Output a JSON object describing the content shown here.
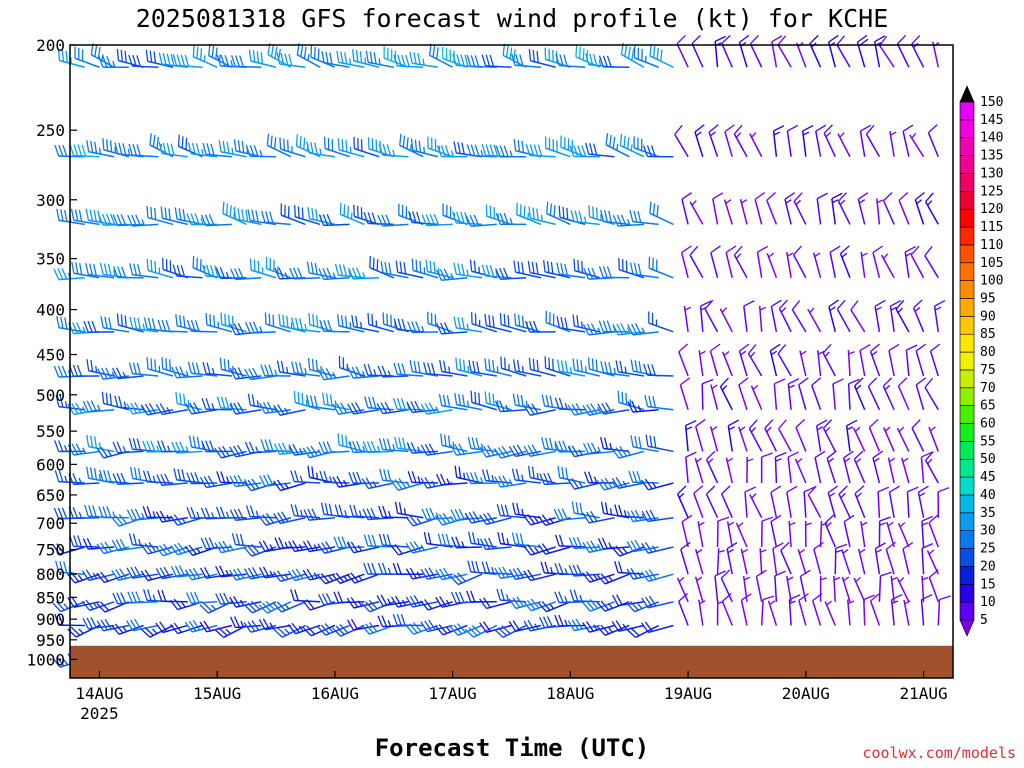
{
  "header": {
    "title": "2025081318 GFS forecast wind profile (kt) for KCHE",
    "xlabel": "Forecast Time (UTC)",
    "credit": "coolwx.com/models"
  },
  "chart_data": {
    "type": "wind-barb-profile",
    "title": "2025081318 GFS forecast wind profile (kt) for KCHE",
    "xlabel": "Forecast Time (UTC)",
    "ylabel": "",
    "y_scale": "log-pressure (hPa), inverted",
    "ylim": [
      1050,
      200
    ],
    "y_ticks": [
      200,
      250,
      300,
      350,
      400,
      450,
      500,
      550,
      600,
      650,
      700,
      750,
      800,
      850,
      900,
      950,
      1000
    ],
    "x_ticks": [
      {
        "hour": 6,
        "label": "14AUG",
        "sublabel": "2025"
      },
      {
        "hour": 30,
        "label": "15AUG",
        "sublabel": ""
      },
      {
        "hour": 54,
        "label": "16AUG",
        "sublabel": ""
      },
      {
        "hour": 78,
        "label": "17AUG",
        "sublabel": ""
      },
      {
        "hour": 102,
        "label": "18AUG",
        "sublabel": ""
      },
      {
        "hour": 126,
        "label": "19AUG",
        "sublabel": ""
      },
      {
        "hour": 150,
        "label": "20AUG",
        "sublabel": ""
      },
      {
        "hour": 174,
        "label": "21AUG",
        "sublabel": ""
      }
    ],
    "xlim": [
      0,
      180
    ],
    "ground_pressure_hpa": 965,
    "ground_color": "#a0522d",
    "barb_levels_hpa": [
      212,
      268,
      320,
      368,
      424,
      476,
      520,
      580,
      630,
      690,
      745,
      800,
      860,
      915,
      1000
    ],
    "colorbar": {
      "levels": [
        5,
        10,
        15,
        20,
        25,
        30,
        35,
        40,
        45,
        50,
        55,
        60,
        65,
        70,
        75,
        80,
        85,
        90,
        95,
        100,
        105,
        110,
        115,
        120,
        125,
        130,
        135,
        140,
        145,
        150
      ],
      "colors": [
        "#7b00f0",
        "#5a00f5",
        "#2800e8",
        "#0a1ee0",
        "#0a4ce8",
        "#0a78f0",
        "#0a9cf0",
        "#05b8e8",
        "#00dcc8",
        "#00e88c",
        "#00ea55",
        "#14f01e",
        "#46f000",
        "#8cf000",
        "#c8f000",
        "#f0f000",
        "#ffe600",
        "#ffc800",
        "#ffaa00",
        "#ff8c00",
        "#ff6e00",
        "#ff5000",
        "#ff2800",
        "#ff0000",
        "#f00032",
        "#f00064",
        "#f0008c",
        "#f000b4",
        "#f000dc",
        "#e600ff"
      ]
    },
    "wind_periods": [
      {
        "hours": [
          0,
          126
        ],
        "upper_dir_deg": 285,
        "upper_speed_kt": 35,
        "lower_dir_deg": 255,
        "lower_speed_kt": 25
      },
      {
        "hours": [
          126,
          180
        ],
        "upper_dir_deg": 340,
        "upper_speed_kt": 12,
        "lower_dir_deg": 350,
        "lower_speed_kt": 8
      }
    ]
  }
}
